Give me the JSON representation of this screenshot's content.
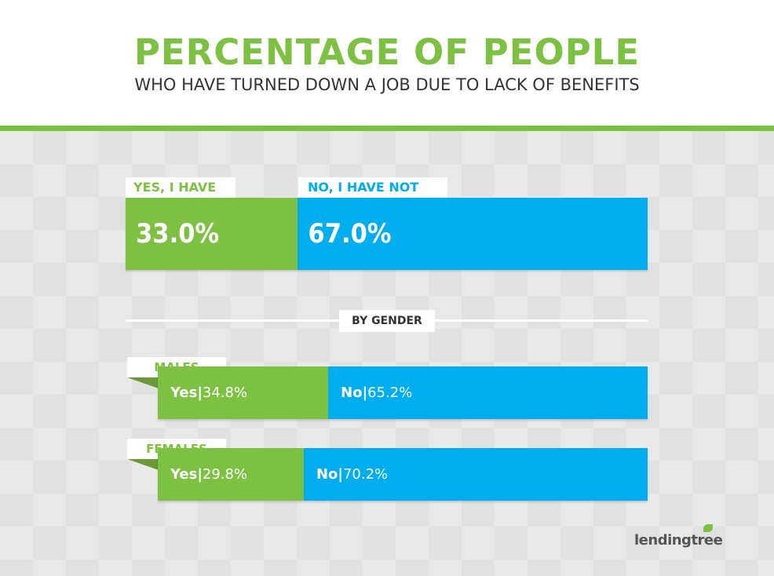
{
  "header": {
    "title": "PERCENTAGE OF PEOPLE",
    "subtitle": "WHO HAVE TURNED DOWN A JOB DUE TO LACK OF BENEFITS"
  },
  "overall": {
    "yes_label": "YES, I HAVE",
    "no_label": "NO, I HAVE NOT",
    "yes_text": "33.0%",
    "no_text": "67.0%"
  },
  "section": {
    "label": "BY GENDER"
  },
  "gender": [
    {
      "label": "MALES",
      "yes_key": "Yes",
      "yes_value": "34.8%",
      "no_key": "No",
      "no_value": "65.2%"
    },
    {
      "label": "FEMALES",
      "yes_key": "Yes",
      "yes_value": "29.8%",
      "no_key": "No",
      "no_value": "70.2%"
    }
  ],
  "brand": {
    "logo_text": "lendingtree"
  },
  "colors": {
    "yes": "#7dc142",
    "no": "#00aeef",
    "title": "#7dc142",
    "text": "#333333"
  },
  "chart_data": {
    "type": "bar",
    "stacked": true,
    "orientation": "horizontal",
    "title": "PERCENTAGE OF PEOPLE",
    "subtitle": "WHO HAVE TURNED DOWN A JOB DUE TO LACK OF BENEFITS",
    "categories": [
      "",
      "MALES",
      "FEMALES"
    ],
    "series": [
      {
        "name": "YES, I HAVE",
        "values": [
          33.0,
          34.8,
          29.8
        ],
        "color": "#7dc142"
      },
      {
        "name": "NO, I HAVE NOT",
        "values": [
          67.0,
          65.2,
          70.2
        ],
        "color": "#00aeef"
      }
    ],
    "xlim": [
      0,
      100
    ],
    "grid": false
  }
}
